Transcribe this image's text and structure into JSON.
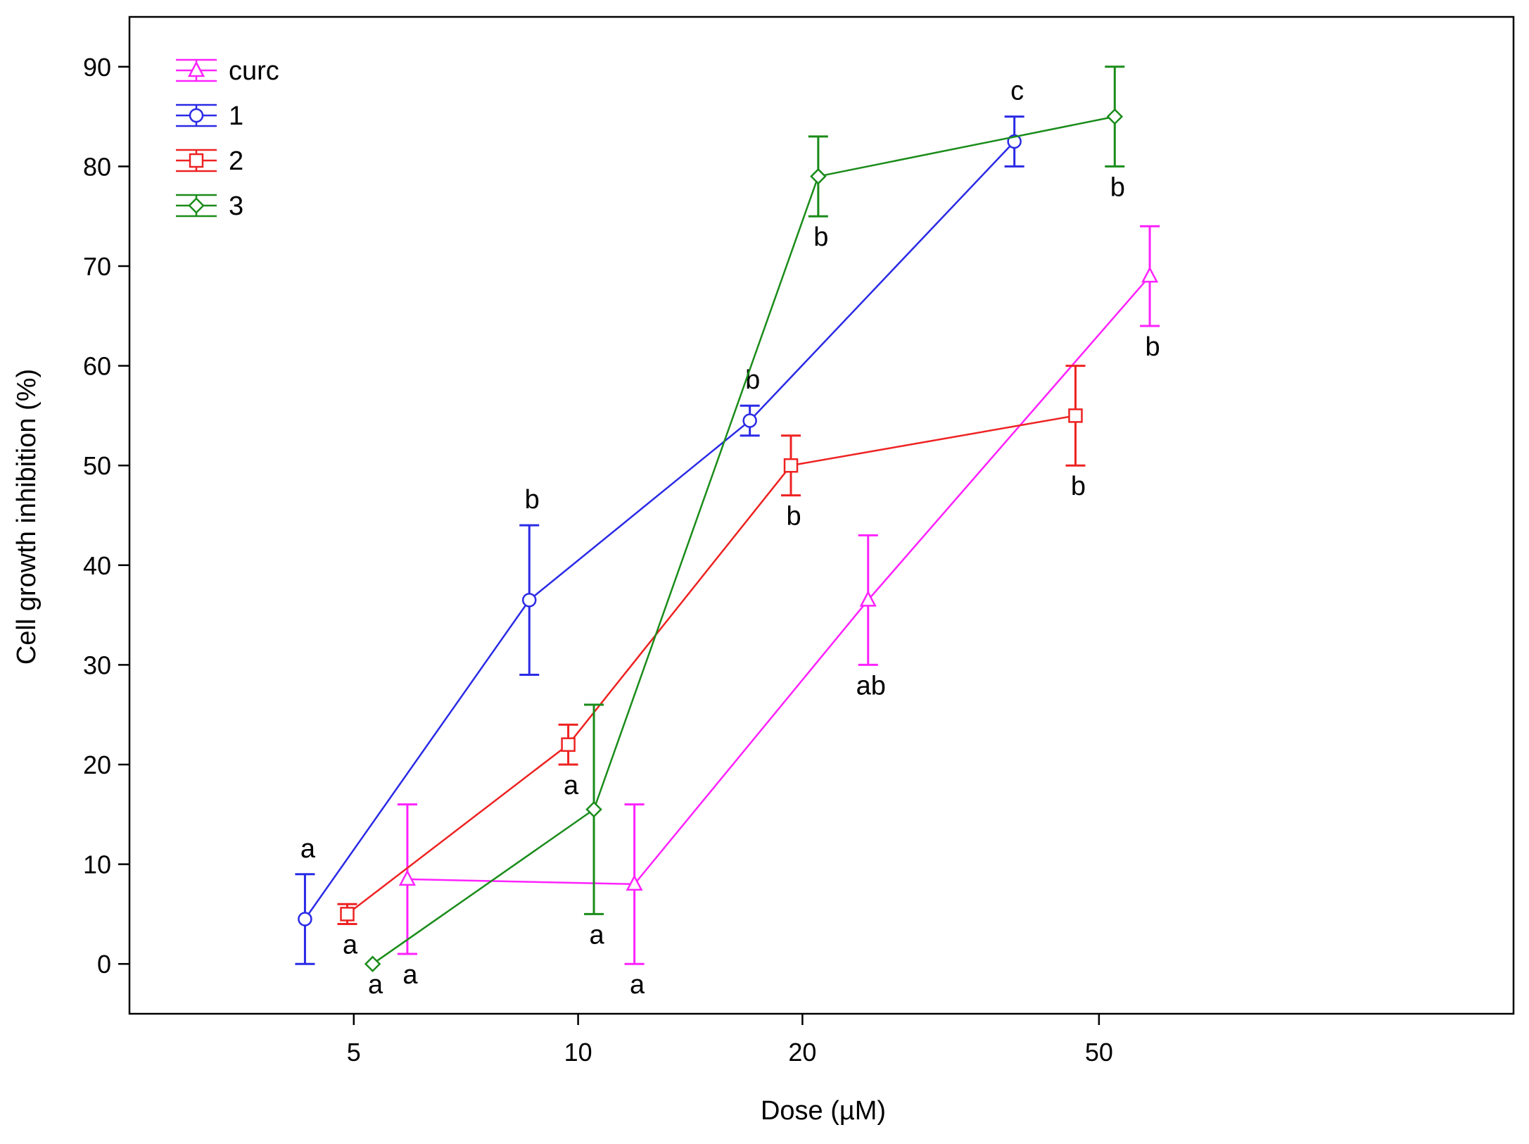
{
  "chart_data": {
    "type": "line",
    "title": "",
    "xlabel": "Dose (µM)",
    "ylabel": "Cell growth inhibition (%)",
    "xscale": "log",
    "xlim": [
      2.5,
      180
    ],
    "ylim": [
      -5,
      95
    ],
    "xticks": [
      5,
      10,
      20,
      50
    ],
    "yticks": [
      0,
      10,
      20,
      30,
      40,
      50,
      60,
      70,
      80,
      90
    ],
    "grid": false,
    "legend_position": "top-left",
    "series": [
      {
        "name": "curc",
        "color": "#ff22ff",
        "marker": "triangle",
        "points": [
          {
            "x": 5.9,
            "y": 8.5,
            "err_low": 7.5,
            "err_high": 7.5,
            "label": "a",
            "label_pos": "below"
          },
          {
            "x": 11.9,
            "y": 8.0,
            "err_low": 8.0,
            "err_high": 8.0,
            "label": "a",
            "label_pos": "below"
          },
          {
            "x": 24.5,
            "y": 36.5,
            "err_low": 6.5,
            "err_high": 6.5,
            "label": "ab",
            "label_pos": "below"
          },
          {
            "x": 58.5,
            "y": 69.0,
            "err_low": 5.0,
            "err_high": 5.0,
            "label": "b",
            "label_pos": "below"
          }
        ]
      },
      {
        "name": "1",
        "color": "#2a2ae6",
        "marker": "circle",
        "points": [
          {
            "x": 4.3,
            "y": 4.5,
            "err_low": 4.5,
            "err_high": 4.5,
            "label": "a",
            "label_pos": "above"
          },
          {
            "x": 8.6,
            "y": 36.5,
            "err_low": 7.5,
            "err_high": 7.5,
            "label": "b",
            "label_pos": "above"
          },
          {
            "x": 17.0,
            "y": 54.5,
            "err_low": 1.5,
            "err_high": 1.5,
            "label": "b",
            "label_pos": "above"
          },
          {
            "x": 38.5,
            "y": 82.5,
            "err_low": 2.5,
            "err_high": 2.5,
            "label": "c",
            "label_pos": "above"
          }
        ]
      },
      {
        "name": "2",
        "color": "#ee2222",
        "marker": "square",
        "points": [
          {
            "x": 4.9,
            "y": 5.0,
            "err_low": 1.0,
            "err_high": 1.0,
            "label": "a",
            "label_pos": "below"
          },
          {
            "x": 9.7,
            "y": 22.0,
            "err_low": 2.0,
            "err_high": 2.0,
            "label": "a",
            "label_pos": "below"
          },
          {
            "x": 19.3,
            "y": 50.0,
            "err_low": 3.0,
            "err_high": 3.0,
            "label": "b",
            "label_pos": "below"
          },
          {
            "x": 46.5,
            "y": 55.0,
            "err_low": 5.0,
            "err_high": 5.0,
            "label": "b",
            "label_pos": "below"
          }
        ]
      },
      {
        "name": "3",
        "color": "#1a8c1a",
        "marker": "diamond",
        "points": [
          {
            "x": 5.3,
            "y": 0.0,
            "err_low": 0.0,
            "err_high": 0.0,
            "label": "a",
            "label_pos": "below"
          },
          {
            "x": 10.5,
            "y": 15.5,
            "err_low": 10.5,
            "err_high": 10.5,
            "label": "a",
            "label_pos": "below"
          },
          {
            "x": 21.0,
            "y": 79.0,
            "err_low": 4.0,
            "err_high": 4.0,
            "label": "b",
            "label_pos": "below"
          },
          {
            "x": 52.5,
            "y": 85.0,
            "err_low": 5.0,
            "err_high": 5.0,
            "label": "b",
            "label_pos": "below"
          }
        ]
      }
    ]
  }
}
